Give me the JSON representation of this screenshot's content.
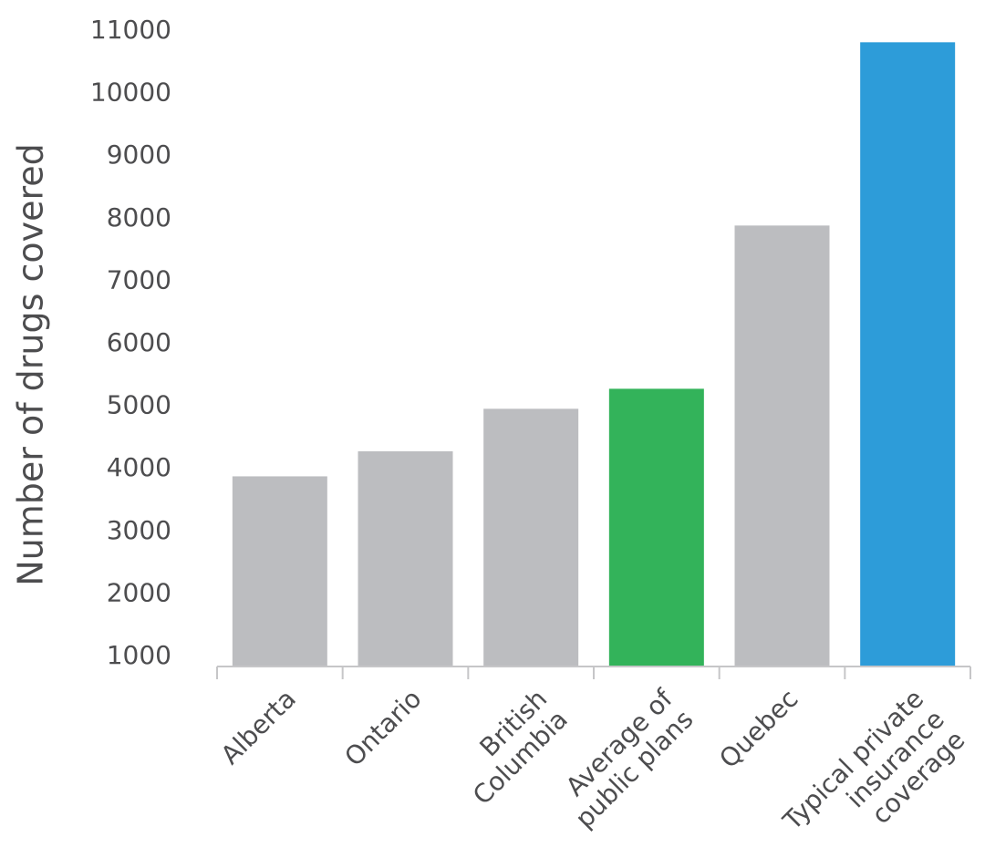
{
  "chart_data": {
    "type": "bar",
    "ylabel": "Number of drugs covered",
    "xlabel": "",
    "ylim": [
      1000,
      11000
    ],
    "y_ticks": [
      1000,
      2000,
      3000,
      4000,
      5000,
      6000,
      7000,
      8000,
      9000,
      10000,
      11000
    ],
    "grid": false,
    "categories": [
      [
        "Alberta"
      ],
      [
        "Ontario"
      ],
      [
        "British",
        "Columbia"
      ],
      [
        "Average of",
        "public plans"
      ],
      [
        "Quebec"
      ],
      [
        "Typical private",
        "insurance",
        "coverage"
      ]
    ],
    "values": [
      3880,
      4280,
      4960,
      5280,
      7890,
      10820
    ],
    "colors": [
      "#bcbdc0",
      "#bcbdc0",
      "#bcbdc0",
      "#33b35a",
      "#bcbdc0",
      "#2d9cd9"
    ]
  }
}
